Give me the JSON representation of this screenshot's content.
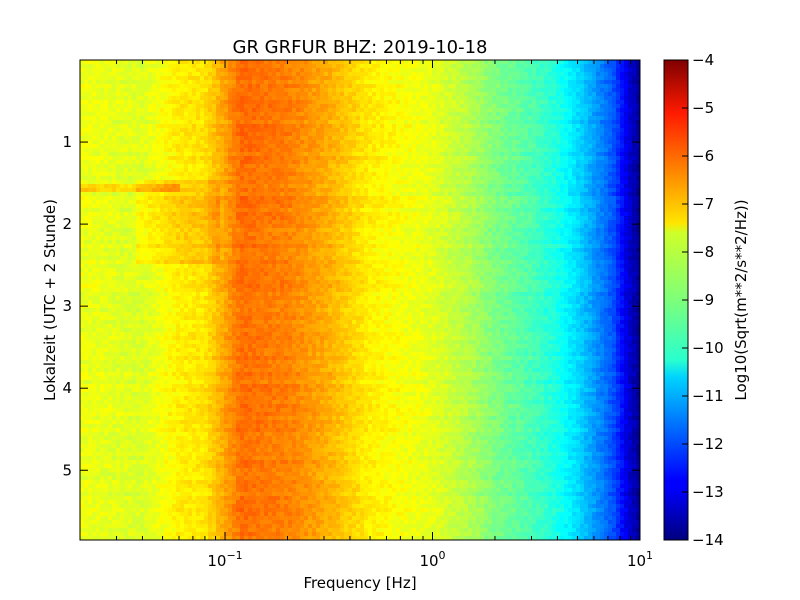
{
  "chart_data": {
    "type": "heatmap",
    "title": "GR GRFUR BHZ: 2019-10-18",
    "xlabel": "Frequency [Hz]",
    "ylabel": "Lokalzeit (UTC + 2 Stunde)",
    "xscale": "log",
    "xlim": [
      0.02,
      10
    ],
    "ylim": [
      0,
      5.85
    ],
    "y_inverted": true,
    "x_ticks": [
      {
        "value": 0.1,
        "base": "10",
        "exp": "−1"
      },
      {
        "value": 1,
        "base": "10",
        "exp": "0"
      },
      {
        "value": 10,
        "base": "10",
        "exp": "1"
      }
    ],
    "y_ticks": [
      1,
      2,
      3,
      4,
      5
    ],
    "colorbar": {
      "label": "Log10(Sqrt(m**2/s**2/Hz))",
      "range": [
        -14,
        -4
      ],
      "colormap": "jet",
      "ticks": [
        "−4",
        "−5",
        "−6",
        "−7",
        "−8",
        "−9",
        "−10",
        "−11",
        "−12",
        "−13",
        "−14"
      ]
    },
    "spectrum_profile": [
      {
        "freq": 0.02,
        "value": -7.9
      },
      {
        "freq": 0.04,
        "value": -8.1
      },
      {
        "freq": 0.06,
        "value": -7.6
      },
      {
        "freq": 0.08,
        "value": -7.5
      },
      {
        "freq": 0.12,
        "value": -6.3
      },
      {
        "freq": 0.15,
        "value": -6.4
      },
      {
        "freq": 0.2,
        "value": -6.5
      },
      {
        "freq": 0.3,
        "value": -6.9
      },
      {
        "freq": 0.4,
        "value": -7.3
      },
      {
        "freq": 0.5,
        "value": -7.6
      },
      {
        "freq": 0.7,
        "value": -7.8
      },
      {
        "freq": 1.0,
        "value": -8.0
      },
      {
        "freq": 1.5,
        "value": -8.5
      },
      {
        "freq": 2.0,
        "value": -9.0
      },
      {
        "freq": 3.0,
        "value": -9.5
      },
      {
        "freq": 4.0,
        "value": -10.0
      },
      {
        "freq": 5.0,
        "value": -10.6
      },
      {
        "freq": 6.0,
        "value": -11.2
      },
      {
        "freq": 7.5,
        "value": -12.0
      },
      {
        "freq": 9.0,
        "value": -13.3
      },
      {
        "freq": 10.0,
        "value": -13.8
      }
    ],
    "grid": false
  }
}
